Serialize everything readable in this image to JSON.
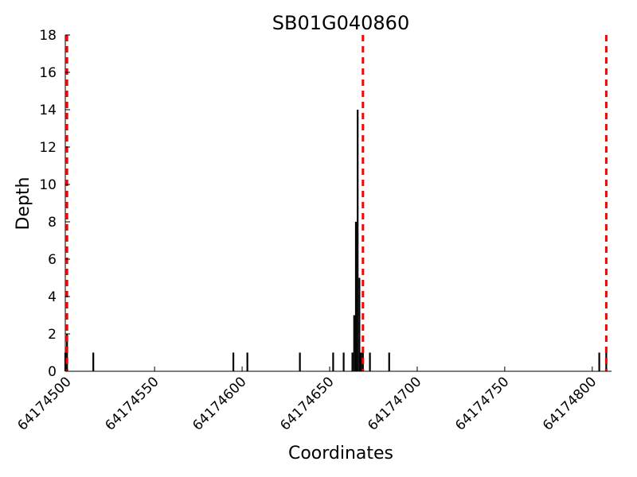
{
  "chart_data": {
    "type": "bar",
    "title": "SB01G040860",
    "xlabel": "Coordinates",
    "ylabel": "Depth",
    "xlim": [
      64174499,
      64174811
    ],
    "ylim": [
      0,
      18
    ],
    "grid": false,
    "xticks": [
      64174500,
      64174550,
      64174600,
      64174650,
      64174700,
      64174750,
      64174800
    ],
    "yticks": [
      0,
      2,
      4,
      6,
      8,
      10,
      12,
      14,
      16,
      18
    ],
    "bars": [
      {
        "x": 64174499,
        "y": 1
      },
      {
        "x": 64174500,
        "y": 2
      },
      {
        "x": 64174515,
        "y": 1
      },
      {
        "x": 64174595,
        "y": 1
      },
      {
        "x": 64174603,
        "y": 1
      },
      {
        "x": 64174633,
        "y": 1
      },
      {
        "x": 64174652,
        "y": 1
      },
      {
        "x": 64174658,
        "y": 1
      },
      {
        "x": 64174663,
        "y": 1
      },
      {
        "x": 64174664,
        "y": 3
      },
      {
        "x": 64174665,
        "y": 8
      },
      {
        "x": 64174666,
        "y": 14
      },
      {
        "x": 64174667,
        "y": 5
      },
      {
        "x": 64174668,
        "y": 1
      },
      {
        "x": 64174669,
        "y": 1
      },
      {
        "x": 64174673,
        "y": 1
      },
      {
        "x": 64174684,
        "y": 1
      },
      {
        "x": 64174804,
        "y": 1
      },
      {
        "x": 64174808,
        "y": 1
      }
    ],
    "markers": [
      {
        "x": 64174500,
        "color": "#ff0000",
        "style": "dashed"
      },
      {
        "x": 64174669,
        "color": "#ff0000",
        "style": "dashed"
      },
      {
        "x": 64174808,
        "color": "#ff0000",
        "style": "dashed"
      }
    ]
  }
}
